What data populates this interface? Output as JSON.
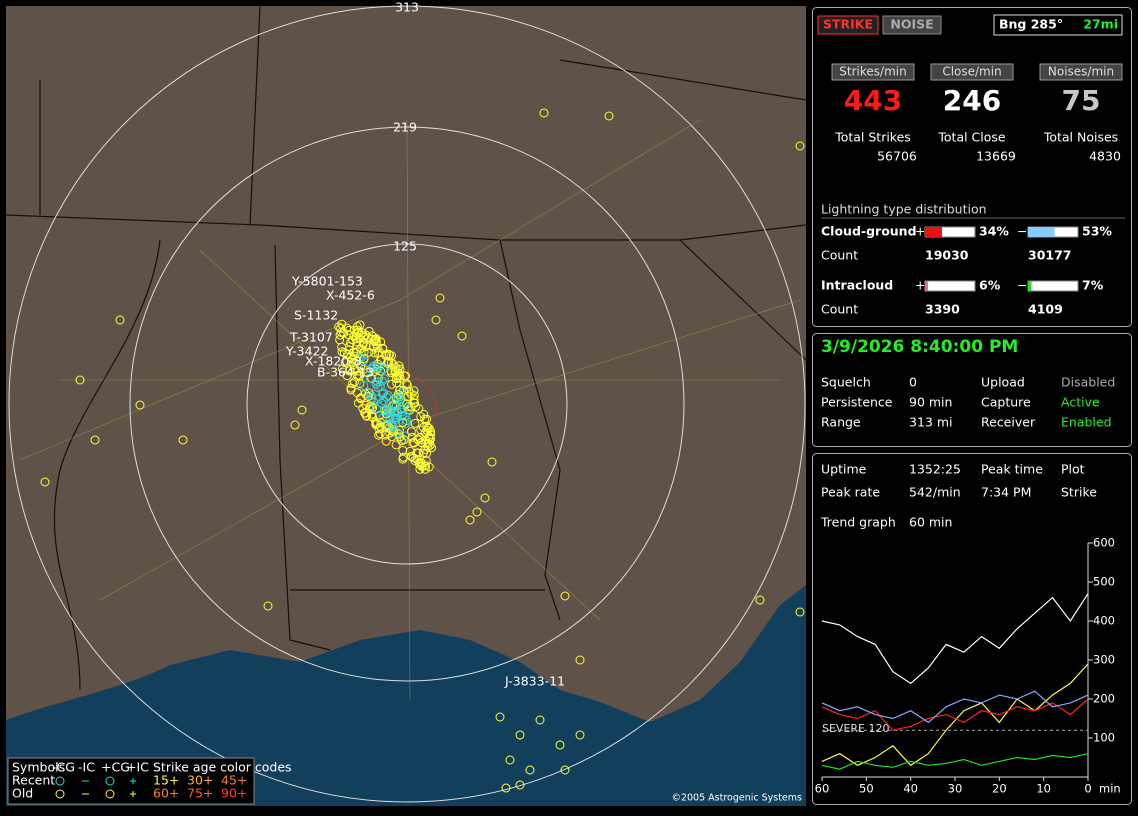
{
  "map": {
    "ring_labels": [
      "313",
      "219",
      "125"
    ],
    "storm_labels": [
      "Y-5801-153",
      "X-452-6",
      "S-1132",
      "T-3107",
      "Y-3422",
      "X-1820-8",
      "B-364-13",
      "J-3833-11"
    ],
    "legend": {
      "symbols": "Symbols",
      "types": [
        "-CG",
        "-IC",
        "+CG",
        "+IC"
      ],
      "age_title": "Strike age color codes",
      "recent": "Recent",
      "old": "Old",
      "recent_ages": [
        "15+",
        "30+",
        "45+"
      ],
      "old_ages": [
        "60+",
        "75+",
        "90+"
      ]
    },
    "copyright": "©2005 Astrogenic Systems"
  },
  "status": {
    "buttons": [
      "STRIKE",
      "NOISE"
    ],
    "bearing": "Bng 285°",
    "distance": "27mi",
    "rates": [
      {
        "label": "Strikes/min",
        "value": 443,
        "total_label": "Total Strikes",
        "total": 56706,
        "color": "#ff1a1a"
      },
      {
        "label": "Close/min",
        "value": 246,
        "total_label": "Total Close",
        "total": 13669,
        "color": "#ffffff"
      },
      {
        "label": "Noises/min",
        "value": 75,
        "total_label": "Total Noises",
        "total": 4830,
        "color": "#c8c8c8"
      }
    ],
    "distribution": {
      "title": "Lightning type distribution",
      "count_label": "Count",
      "rows": [
        {
          "name": "Cloud-ground",
          "pos_sign": "+",
          "pos": {
            "value": 34,
            "label": "34%"
          },
          "pos_color": "#ee1111",
          "neg_sign": "−",
          "neg": {
            "value": 53,
            "label": "53%"
          },
          "neg_color": "#88ccff",
          "pos_count": 19030,
          "neg_count": 30177
        },
        {
          "name": "Intracloud",
          "pos_sign": "+",
          "pos": {
            "value": 6,
            "label": "6%"
          },
          "pos_color": "#ee66aa",
          "neg_sign": "−",
          "neg": {
            "value": 7,
            "label": "7%"
          },
          "neg_color": "#22dd22",
          "pos_count": 3390,
          "neg_count": 4109
        }
      ]
    }
  },
  "receiver": {
    "datetime": "3/9/2026 8:40:00 PM",
    "rows": [
      [
        "Squelch",
        "0",
        "Upload",
        "Disabled"
      ],
      [
        "Persistence",
        "90 min",
        "Capture",
        "Active"
      ],
      [
        "Range",
        "313 mi",
        "Receiver",
        "Enabled"
      ]
    ]
  },
  "stats": {
    "rows": [
      [
        "Uptime",
        "1352:25",
        "Peak time",
        "Plot"
      ],
      [
        "Peak rate",
        "542/min",
        "7:34 PM",
        "Strike"
      ],
      [
        "Trend graph",
        "60 min"
      ]
    ]
  },
  "trend_graph": {
    "type": "line",
    "x": [
      60,
      56,
      52,
      48,
      44,
      40,
      36,
      32,
      28,
      24,
      20,
      16,
      12,
      8,
      4,
      0
    ],
    "series": [
      {
        "color": "#ffffff",
        "values": [
          400,
          390,
          360,
          340,
          270,
          240,
          280,
          340,
          320,
          360,
          330,
          380,
          420,
          460,
          400,
          470
        ]
      },
      {
        "color": "#ffff33",
        "values": [
          40,
          60,
          30,
          50,
          80,
          30,
          60,
          120,
          170,
          190,
          140,
          200,
          170,
          210,
          240,
          290
        ]
      },
      {
        "color": "#ff2020",
        "values": [
          180,
          160,
          150,
          170,
          120,
          130,
          150,
          160,
          140,
          170,
          160,
          180,
          170,
          190,
          160,
          200
        ]
      },
      {
        "color": "#88aaff",
        "values": [
          190,
          170,
          180,
          160,
          150,
          170,
          140,
          180,
          200,
          190,
          210,
          200,
          220,
          180,
          190,
          210
        ]
      },
      {
        "color": "#22dd22",
        "values": [
          30,
          20,
          40,
          30,
          25,
          40,
          30,
          35,
          45,
          30,
          40,
          50,
          45,
          55,
          50,
          60
        ]
      }
    ],
    "xlim": [
      60,
      0
    ],
    "xticks": [
      60,
      50,
      40,
      30,
      20,
      10,
      0
    ],
    "x_unit": "min",
    "ylim": [
      0,
      600
    ],
    "yticks": [
      100,
      200,
      300,
      400,
      500,
      600
    ],
    "severe_label": "SEVERE 120",
    "severe_level": 120
  }
}
